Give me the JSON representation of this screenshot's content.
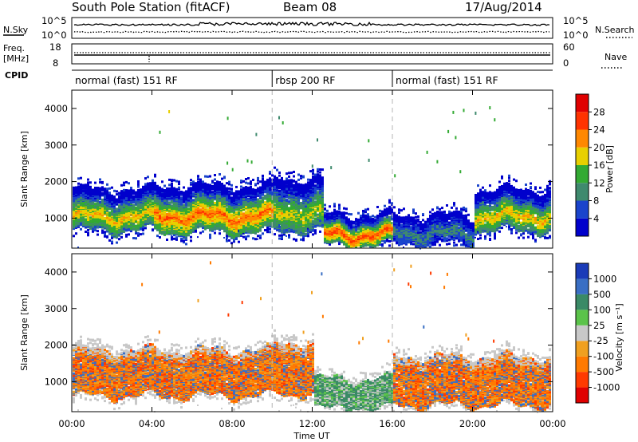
{
  "header": {
    "title": "South Pole Station (fitACF)",
    "beam": "Beam 08",
    "date": "17/Aug/2014"
  },
  "noise_panel": {
    "left_label": "N.Sky",
    "right_label": "N.Search",
    "tick_hi": "10^5",
    "tick_lo": "10^0"
  },
  "freq_panel": {
    "left_label_1": "Freq.",
    "left_label_2": "[MHz]",
    "left_ticks": [
      "18",
      "8"
    ],
    "right_ticks": [
      "60",
      "0"
    ],
    "right_label": "Nave"
  },
  "cpid_panel": {
    "label": "CPID",
    "segments": [
      {
        "name": "normal (fast) 151 RF",
        "start_h": 0,
        "end_h": 10
      },
      {
        "name": "rbsp 200 RF",
        "start_h": 10,
        "end_h": 16
      },
      {
        "name": "normal (fast) 151 RF",
        "start_h": 16,
        "end_h": 24
      }
    ]
  },
  "chart_data": [
    {
      "type": "heatmap",
      "quantity": "power",
      "ylabel": "Slant Range [km]",
      "ylim": [
        180,
        4500
      ],
      "yticks": [
        "1000",
        "2000",
        "3000",
        "4000"
      ],
      "colorbar_label": "Power [dB]",
      "colorbar_ticks": [
        "4",
        "8",
        "12",
        "16",
        "20",
        "24",
        "28"
      ],
      "colorbar_range": [
        0,
        32
      ],
      "colors": [
        "#0000cc",
        "#1a44cc",
        "#3f8a6e",
        "#33aa33",
        "#e8d000",
        "#ff8800",
        "#ff3300",
        "#e00000"
      ],
      "scatter_bands": [
        {
          "start_h": 0,
          "end_h": 4,
          "lower_km": 700,
          "upper_km": 1800,
          "peak": 20
        },
        {
          "start_h": 4,
          "end_h": 10,
          "lower_km": 650,
          "upper_km": 1900,
          "peak": 24
        },
        {
          "start_h": 10,
          "end_h": 12.5,
          "lower_km": 700,
          "upper_km": 2100,
          "peak": 18
        },
        {
          "start_h": 12.5,
          "end_h": 16,
          "lower_km": 300,
          "upper_km": 1100,
          "peak": 26
        },
        {
          "start_h": 16,
          "end_h": 20,
          "lower_km": 350,
          "upper_km": 1100,
          "peak": 10
        },
        {
          "start_h": 20,
          "end_h": 24,
          "lower_km": 700,
          "upper_km": 1800,
          "peak": 20
        }
      ]
    },
    {
      "type": "heatmap",
      "quantity": "velocity",
      "ylabel": "Slant Range [km]",
      "ylim": [
        180,
        4500
      ],
      "yticks": [
        "1000",
        "2000",
        "3000",
        "4000"
      ],
      "xlabel": "Time UT",
      "xlim": [
        0,
        24
      ],
      "xticks": [
        "00:00",
        "04:00",
        "08:00",
        "12:00",
        "16:00",
        "20:00",
        "00:00"
      ],
      "colorbar_label": "Velocity [m s⁻¹]",
      "colorbar_ticks": [
        "1000",
        "500",
        "100",
        "25",
        "-25",
        "-100",
        "-500",
        "-1000"
      ],
      "colors": [
        "#1a3bb8",
        "#3a6fc4",
        "#3a8a66",
        "#5bc34a",
        "#c8c8c8",
        "#f0a020",
        "#ff7a00",
        "#ff3a00",
        "#e00000"
      ],
      "scatter_bands": [
        {
          "start_h": 0,
          "end_h": 10,
          "lower_km": 650,
          "upper_km": 1900,
          "value": -200
        },
        {
          "start_h": 10,
          "end_h": 12,
          "lower_km": 700,
          "upper_km": 2100,
          "value": -120
        },
        {
          "start_h": 12,
          "end_h": 16,
          "lower_km": 300,
          "upper_km": 1100,
          "value": 150
        },
        {
          "start_h": 16,
          "end_h": 24,
          "lower_km": 400,
          "upper_km": 1700,
          "value": -250
        }
      ]
    }
  ]
}
